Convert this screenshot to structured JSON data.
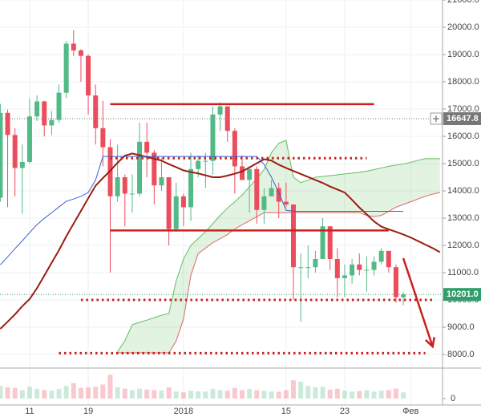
{
  "chart_data": {
    "type": "candlestick",
    "categories": [
      null,
      null,
      null,
      null,
      "11",
      null,
      null,
      null,
      null,
      null,
      null,
      null,
      "19",
      null,
      null,
      null,
      null,
      null,
      null,
      null,
      null,
      null,
      null,
      null,
      null,
      "2018",
      null,
      null,
      null,
      null,
      null,
      null,
      null,
      null,
      null,
      null,
      null,
      null,
      null,
      "15",
      null,
      null,
      null,
      null,
      null,
      null,
      null,
      "23",
      null,
      null,
      null,
      null,
      null,
      null,
      null,
      null,
      "Фев",
      null,
      null,
      null,
      null
    ],
    "open": [
      13750,
      16860,
      16050,
      14840,
      15060,
      16730,
      17280,
      16400,
      16600,
      17600,
      19400,
      19150,
      18950,
      17500,
      16300,
      15600,
      13800,
      14500,
      13900,
      13900,
      15800,
      15400,
      14200,
      14500,
      12600,
      13800,
      13400,
      14800,
      15100,
      15100,
      16800,
      17100,
      16200,
      14900,
      14400,
      14800,
      13300,
      13800,
      14100,
      13600,
      13500,
      11200,
      11200,
      11200,
      11500,
      12700,
      11500,
      10800,
      10900,
      11300,
      11100,
      11100,
      11400,
      11800,
      11200,
      10100,
      null,
      null,
      null,
      null,
      null
    ],
    "high": [
      17190,
      16980,
      16300,
      15700,
      17400,
      17500,
      17300,
      16930,
      17900,
      19500,
      19890,
      19200,
      19000,
      17900,
      17300,
      15900,
      15700,
      14600,
      14600,
      16500,
      16500,
      15500,
      15200,
      14500,
      14300,
      13900,
      15400,
      15300,
      15400,
      17100,
      17250,
      17100,
      16300,
      15300,
      14900,
      14900,
      14100,
      14400,
      14300,
      14300,
      13500,
      11700,
      12000,
      11800,
      13000,
      12700,
      11900,
      11300,
      11500,
      11700,
      11600,
      11600,
      11900,
      11800,
      11300,
      10300,
      null,
      null,
      null,
      null,
      null
    ],
    "low": [
      13600,
      13400,
      13800,
      13160,
      15000,
      16560,
      16000,
      16050,
      16500,
      17400,
      18950,
      18000,
      16800,
      15700,
      14900,
      11000,
      13600,
      12700,
      13200,
      13800,
      14500,
      13500,
      14000,
      12000,
      12500,
      12700,
      12900,
      14500,
      14100,
      14600,
      16200,
      15800,
      13900,
      14400,
      13200,
      12800,
      12800,
      13800,
      13000,
      13400,
      10000,
      9200,
      10800,
      11000,
      11500,
      11100,
      10100,
      10100,
      10600,
      10900,
      10300,
      10900,
      11300,
      11000,
      9900,
      9800,
      null,
      null,
      null,
      null,
      null
    ],
    "close": [
      16860,
      16050,
      14840,
      15060,
      16730,
      17280,
      16400,
      16600,
      17600,
      19400,
      19150,
      18950,
      17500,
      16300,
      15600,
      13800,
      14500,
      13900,
      13900,
      15800,
      15400,
      14200,
      14500,
      12600,
      13800,
      13400,
      14800,
      15100,
      15100,
      16800,
      17100,
      16200,
      14900,
      14400,
      14800,
      13300,
      13800,
      14100,
      13600,
      13500,
      11200,
      11200,
      11200,
      11500,
      12700,
      11500,
      10800,
      10900,
      11300,
      11100,
      11100,
      11400,
      11800,
      11200,
      10100,
      10201,
      null,
      null,
      null,
      null,
      null
    ],
    "volume": [
      45,
      40,
      38,
      30,
      42,
      35,
      30,
      28,
      34,
      45,
      55,
      38,
      40,
      42,
      50,
      85,
      40,
      35,
      30,
      35,
      32,
      30,
      28,
      40,
      25,
      22,
      28,
      26,
      25,
      35,
      30,
      28,
      38,
      30,
      34,
      30,
      28,
      25,
      24,
      30,
      65,
      60,
      45,
      40,
      42,
      32,
      35,
      28,
      25,
      27,
      30,
      25,
      28,
      30,
      35,
      22,
      null,
      null,
      null,
      null,
      null
    ],
    "up_color": "#53b987",
    "down_color": "#eb4d5c",
    "lines": [
      {
        "color": "#9b1c10",
        "width": 2,
        "values": [
          8940,
          9200,
          9470,
          9770,
          10030,
          10430,
          10890,
          11360,
          11820,
          12330,
          12800,
          13260,
          13730,
          14190,
          14470,
          14740,
          15030,
          15290,
          15370,
          15310,
          15240,
          15180,
          15110,
          14980,
          14870,
          14750,
          14690,
          14640,
          14570,
          14500,
          14500,
          14560,
          14630,
          14710,
          14860,
          15010,
          15160,
          15110,
          14960,
          14840,
          14730,
          14620,
          14510,
          14400,
          14290,
          14160,
          14050,
          13940,
          13670,
          13390,
          13140,
          12880,
          12690,
          12590,
          12500,
          12400,
          12290,
          12160,
          12030,
          11900,
          11750
        ]
      },
      {
        "color": "#3a5fd0",
        "width": 1,
        "values": [
          11290,
          11580,
          11880,
          12170,
          12470,
          12760,
          12990,
          13200,
          13410,
          13620,
          13700,
          13800,
          13940,
          14400,
          15260,
          15260,
          15260,
          15260,
          15260,
          15260,
          15260,
          15260,
          15260,
          15260,
          15260,
          15260,
          15260,
          15260,
          15260,
          15260,
          15260,
          15260,
          15260,
          15260,
          15260,
          15260,
          14970,
          14500,
          13940,
          13290,
          13250,
          13250,
          13250,
          13250,
          13250,
          13250,
          13250,
          13250,
          13250,
          13250,
          13250,
          13250,
          13250,
          13250,
          13250,
          13250,
          null,
          null,
          null,
          null,
          null
        ]
      }
    ],
    "cloud": {
      "color": "#5fbf5f",
      "span_a": [
        null,
        null,
        null,
        null,
        null,
        null,
        null,
        null,
        null,
        null,
        null,
        null,
        null,
        null,
        null,
        null,
        8100,
        8500,
        9090,
        9180,
        9260,
        9350,
        9440,
        9500,
        10700,
        11500,
        12000,
        12250,
        12500,
        12800,
        13100,
        13370,
        13600,
        13850,
        14150,
        14450,
        14780,
        15400,
        15750,
        15850,
        14500,
        14300,
        14400,
        14500,
        14530,
        14560,
        14590,
        14620,
        14650,
        14680,
        14720,
        14780,
        14840,
        14900,
        14950,
        14980,
        15050,
        15120,
        15180,
        15180,
        15180
      ],
      "span_b_color": "#e06666",
      "span_b": [
        null,
        null,
        null,
        null,
        null,
        null,
        null,
        null,
        null,
        null,
        null,
        null,
        null,
        null,
        null,
        null,
        8060,
        8060,
        8060,
        8060,
        8060,
        8060,
        8060,
        8060,
        8500,
        9300,
        10900,
        11700,
        11900,
        12100,
        12250,
        12400,
        12600,
        12760,
        12900,
        13050,
        13200,
        13200,
        13200,
        13200,
        13200,
        13200,
        13200,
        13200,
        13200,
        13200,
        13200,
        13200,
        13200,
        13200,
        13100,
        13060,
        13100,
        13250,
        13400,
        13500,
        13600,
        13700,
        13800,
        13880,
        13940
      ]
    },
    "levels": [
      {
        "value": 17180,
        "from": 15,
        "to": 51,
        "style": "solid",
        "color": "#cc1f1f"
      },
      {
        "value": 12550,
        "from": 15,
        "to": 53,
        "style": "solid",
        "color": "#cc1f1f"
      },
      {
        "value": 15200,
        "from": 15,
        "to": 50,
        "style": "dotted",
        "color": "#cc1f1f"
      },
      {
        "value": 10000,
        "from": 11,
        "to": 59,
        "style": "dotted",
        "color": "#cc1f1f"
      },
      {
        "value": 8050,
        "from": 8,
        "to": 58,
        "style": "dotted",
        "color": "#cc1f1f"
      }
    ],
    "arrow": {
      "from": [
        55,
        11530
      ],
      "to": [
        59,
        8290
      ],
      "color": "#cc1f1f"
    },
    "price_lines": [
      {
        "value": 16647.8,
        "label": "16647.8",
        "color": "#777777"
      },
      {
        "value": 10201,
        "label": "10201.0",
        "color": "#2e9e6a"
      }
    ],
    "ylim": [
      7530,
      21000
    ],
    "yticks": [
      {
        "value": 8000,
        "label": "8000.0"
      },
      {
        "value": 9000,
        "label": "9000.0"
      },
      {
        "value": 10000,
        "label": "10000.0"
      },
      {
        "value": 11000,
        "label": "11000.0"
      },
      {
        "value": 12000,
        "label": "12000.0"
      },
      {
        "value": 13000,
        "label": "13000.0"
      },
      {
        "value": 14000,
        "label": "14000.0"
      },
      {
        "value": 15000,
        "label": "15000.0"
      },
      {
        "value": 16000,
        "label": "16000.0"
      },
      {
        "value": 17000,
        "label": "17000.0"
      },
      {
        "value": 18000,
        "label": "18000.0"
      },
      {
        "value": 19000,
        "label": "19000.0"
      },
      {
        "value": 20000,
        "label": "20000.0"
      },
      {
        "value": 21000,
        "label": "21000.0"
      }
    ],
    "vlim": [
      0,
      100
    ],
    "vticks": [
      0
    ],
    "grid": true
  }
}
